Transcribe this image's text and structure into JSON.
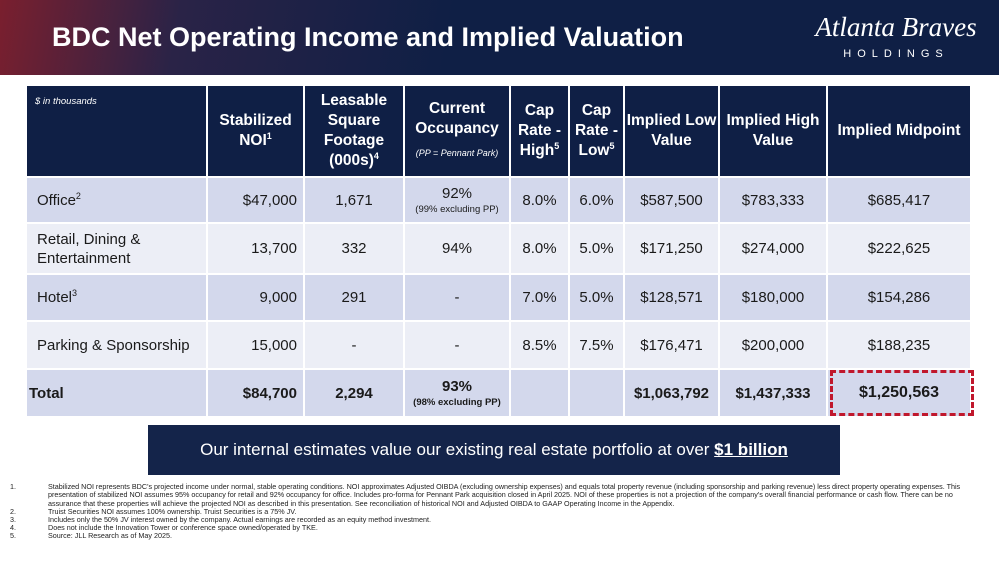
{
  "header": {
    "title": "BDC Net Operating Income and Implied Valuation",
    "logo_script": "Atlanta Braves",
    "logo_sub": "HOLDINGS"
  },
  "table": {
    "unit_note": "$ in thousands",
    "columns": [
      {
        "text": "Stabilized NOI",
        "sup": "1"
      },
      {
        "text": "Leasable Square Footage (000s)",
        "sup": "4"
      },
      {
        "text": "Current Occupancy",
        "note": "(PP = Pennant Park)"
      },
      {
        "text": "Cap Rate - High",
        "sup": "5"
      },
      {
        "text": "Cap Rate - Low",
        "sup": "5"
      },
      {
        "text": "Implied Low Value"
      },
      {
        "text": "Implied High Value"
      },
      {
        "text": "Implied Midpoint"
      }
    ],
    "rows": [
      {
        "label": "Office",
        "sup": "2",
        "cells": [
          "$47,000",
          "1,671",
          "92%",
          "8.0%",
          "6.0%",
          "$587,500",
          "$783,333",
          "$685,417"
        ],
        "occupancy_note": "(99% excluding PP)"
      },
      {
        "label": "Retail, Dining & Entertainment",
        "cells": [
          "13,700",
          "332",
          "94%",
          "8.0%",
          "5.0%",
          "$171,250",
          "$274,000",
          "$222,625"
        ]
      },
      {
        "label": "Hotel",
        "sup": "3",
        "cells": [
          "9,000",
          "291",
          "-",
          "7.0%",
          "5.0%",
          "$128,571",
          "$180,000",
          "$154,286"
        ]
      },
      {
        "label": "Parking & Sponsorship",
        "cells": [
          "15,000",
          "-",
          "-",
          "8.5%",
          "7.5%",
          "$176,471",
          "$200,000",
          "$188,235"
        ]
      },
      {
        "label": "Total",
        "total": true,
        "cells": [
          "$84,700",
          "2,294",
          "93%",
          null,
          null,
          "$1,063,792",
          "$1,437,333",
          "$1,250,563"
        ],
        "occupancy_note": "(98% excluding PP)"
      }
    ]
  },
  "callout": {
    "text": "Our internal estimates value our existing real estate portfolio at over ",
    "emphasis": "$1 billion"
  },
  "footnotes": [
    {
      "number": "1.",
      "text": "Stabilized NOI represents BDC's projected income under normal, stable operating conditions. NOI approximates Adjusted OIBDA (excluding ownership expenses) and equals total property revenue (including sponsorship and parking revenue) less direct property operating expenses. This presentation of stabilized NOI assumes 95% occupancy for retail and 92% occupancy for office. Includes pro-forma for Pennant Park acquisition closed in April 2025. NOI of these properties is not a projection of the company's overall financial performance or cash flow. There can be no assurance that these properties will achieve the projected NOI as described in this presentation. See reconciliation of historical NOI and Adjusted OIBDA to GAAP Operating Income in the Appendix."
    },
    {
      "number": "2.",
      "text": "Truist Securities NOI assumes 100% ownership. Truist Securities is a 75% JV."
    },
    {
      "number": "3.",
      "text": "Includes only the 50% JV interest owned by the company. Actual earnings are recorded as an equity method investment."
    },
    {
      "number": "4.",
      "text": "Does not include the Innovation Tower or conference space owned/operated by TKE."
    },
    {
      "number": "5.",
      "text": "Source: JLL Research as of May 2025."
    }
  ]
}
